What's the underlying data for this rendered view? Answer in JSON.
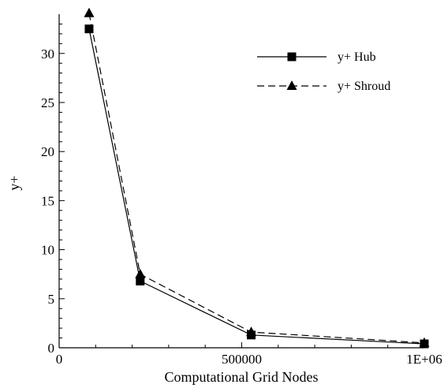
{
  "chart_data": {
    "type": "line",
    "xlabel": "Computational Grid Nodes",
    "ylabel": "y+",
    "xlim": [
      0,
      1000000
    ],
    "ylim": [
      0,
      34
    ],
    "x_ticks": [
      0,
      500000,
      1000000
    ],
    "x_tick_labels": [
      "0",
      "500000",
      "1E+06"
    ],
    "y_ticks": [
      0,
      5,
      10,
      15,
      20,
      25,
      30
    ],
    "y_tick_labels": [
      "0",
      "5",
      "10",
      "15",
      "20",
      "25",
      "30"
    ],
    "grid": false,
    "legend_position": "top-right",
    "series": [
      {
        "name": "y+ Hub",
        "marker": "square",
        "line": "solid",
        "x": [
          82000,
          222000,
          526000,
          1000000
        ],
        "y": [
          32.5,
          6.8,
          1.3,
          0.4
        ]
      },
      {
        "name": "y+ Shroud",
        "marker": "triangle",
        "line": "dashed",
        "x": [
          82000,
          222000,
          526000,
          1000000
        ],
        "y": [
          34.1,
          7.5,
          1.6,
          0.5
        ]
      }
    ]
  }
}
